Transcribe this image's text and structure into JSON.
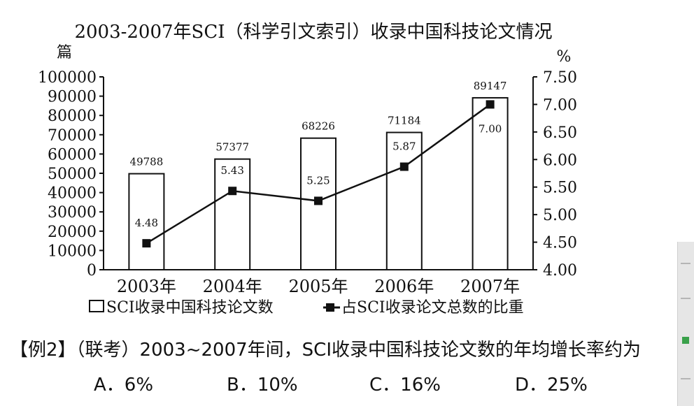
{
  "chart_data": {
    "type": "bar+line",
    "title": "2003-2007年SCI（科学引文索引）收录中国科技论文情况",
    "y_left_label": "篇",
    "y_right_label": "%",
    "y_left_ticks": [
      "100000",
      "90000",
      "80000",
      "70000",
      "60000",
      "50000",
      "40000",
      "30000",
      "20000",
      "10000",
      "0"
    ],
    "y_right_ticks": [
      "7.50",
      "7.00",
      "6.50",
      "6.00",
      "5.50",
      "5.00",
      "4.50",
      "4.00"
    ],
    "ylim_left": [
      0,
      100000
    ],
    "ylim_right": [
      4.0,
      7.5
    ],
    "categories": [
      "2003年",
      "2004年",
      "2005年",
      "2006年",
      "2007年"
    ],
    "series": [
      {
        "name": "SCI收录中国科技论文数",
        "kind": "bar",
        "values": [
          49788,
          57377,
          68226,
          71184,
          89147
        ],
        "labels": [
          "49788",
          "57377",
          "68226",
          "71184",
          "89147"
        ]
      },
      {
        "name": "占SCI收录论文总数的比重",
        "kind": "line",
        "values": [
          4.48,
          5.43,
          5.25,
          5.87,
          7.0
        ],
        "labels": [
          "4.48",
          "5.43",
          "5.25",
          "5.87",
          "7.00"
        ]
      }
    ],
    "legend": "bottom",
    "grid": false
  },
  "question": {
    "text": "【例2】（联考）2003~2007年间，SCI收录中国科技论文数的年均增长率约为"
  },
  "options": [
    {
      "label": "A．6%"
    },
    {
      "label": "B．10%"
    },
    {
      "label": "C．16%"
    },
    {
      "label": "D．25%"
    }
  ]
}
